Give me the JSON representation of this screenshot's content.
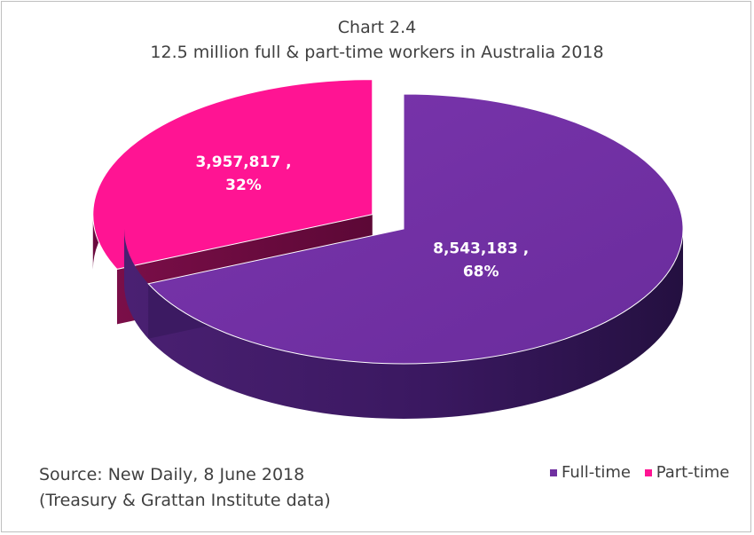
{
  "chart_data": {
    "type": "pie",
    "title": "Chart 2.4",
    "subtitle": "12.5 million full & part-time workers in Australia 2018",
    "slices": [
      {
        "name": "Full-time",
        "value": 8543183,
        "percent": "68%",
        "label_value": "8,543,183 ,",
        "color": "#7030a0"
      },
      {
        "name": "Part-time",
        "value": 3957817,
        "percent": "32%",
        "label_value": "3,957,817 ,",
        "color": "#ff1493"
      }
    ],
    "legend_placement": "bottom-right"
  },
  "source": {
    "line1": "Source: New Daily, 8 June 2018",
    "line2": "(Treasury & Grattan Institute data)"
  }
}
